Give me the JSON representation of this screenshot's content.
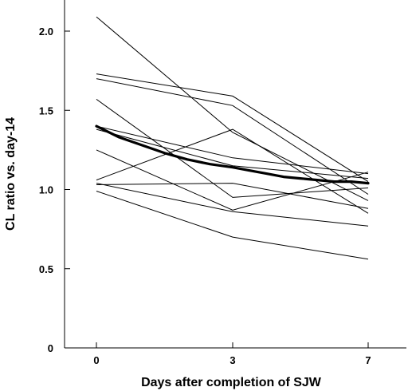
{
  "chart_data": {
    "type": "line",
    "title": "",
    "xlabel": "Days after completion of SJW",
    "ylabel": "CL ratio vs. day-14",
    "x_ticks": [
      "0",
      "3",
      "7"
    ],
    "x": [
      0,
      3,
      7
    ],
    "y_ticks": [
      "0",
      "0.5",
      "1.0",
      "1.5",
      "2.0"
    ],
    "ylim": [
      0,
      2.1
    ],
    "grid": false,
    "legend": "none",
    "series": [
      {
        "values": [
          2.09,
          1.36,
          0.93
        ]
      },
      {
        "values": [
          1.73,
          1.59,
          1.05
        ]
      },
      {
        "values": [
          1.7,
          1.53,
          0.97
        ]
      },
      {
        "values": [
          1.57,
          0.95,
          1.01
        ]
      },
      {
        "values": [
          1.4,
          1.2,
          1.1
        ]
      },
      {
        "values": [
          1.38,
          1.15,
          1.07
        ]
      },
      {
        "values": [
          1.25,
          0.87,
          1.11
        ]
      },
      {
        "values": [
          1.06,
          1.38,
          0.85
        ]
      },
      {
        "values": [
          1.04,
          0.86,
          0.77
        ]
      },
      {
        "values": [
          1.03,
          1.04,
          0.88
        ]
      },
      {
        "values": [
          0.99,
          0.7,
          0.56
        ]
      }
    ],
    "mean_curve": {
      "x": [
        0,
        0.5,
        1,
        1.5,
        2,
        2.5,
        3,
        3.5,
        4,
        4.5,
        5,
        5.5,
        6,
        6.5,
        7
      ],
      "values": [
        1.4,
        1.33,
        1.28,
        1.23,
        1.19,
        1.16,
        1.14,
        1.12,
        1.1,
        1.08,
        1.07,
        1.06,
        1.05,
        1.05,
        1.04
      ]
    }
  }
}
